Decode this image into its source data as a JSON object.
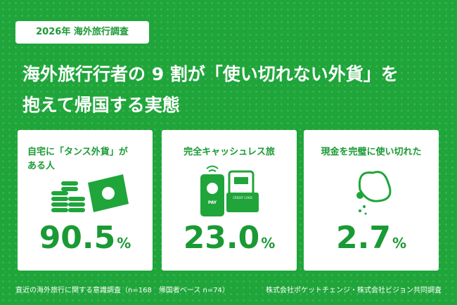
{
  "header": {
    "tag": "2026年 海外旅行調査",
    "title_lines": [
      "海外旅行行者の 9 割が「使い切れない外貨」を",
      "抱えて帰国する実態"
    ]
  },
  "cards": [
    {
      "label_lines": [
        "自宅に「タンス外貨」が",
        "ある人"
      ],
      "value": "90.5",
      "unit": "%"
    },
    {
      "label_lines": [
        "完全キャッシュレス旅"
      ],
      "value": "23.0",
      "unit": "%"
    },
    {
      "label_lines": [
        "現金を完璧に使い切れた"
      ],
      "value": "2.7",
      "unit": "%"
    }
  ],
  "icons": {
    "pay": "PAY",
    "card": "CREDIT CARD"
  },
  "footer": {
    "note": "直近の海外旅行に関する意識調査（n=168　帰国者ベース n=74）",
    "source": "株式会社ポケットチェンジ・株式会社ビジョン共同調査"
  }
}
